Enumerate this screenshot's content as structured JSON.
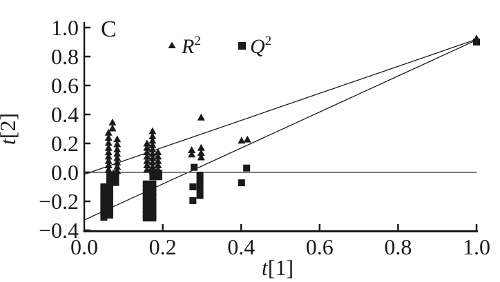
{
  "figure": {
    "panel_label": "C"
  },
  "legend": {
    "items": [
      {
        "marker": "triangle",
        "base": "R",
        "sup": "2"
      },
      {
        "marker": "square",
        "base": "Q",
        "sup": "2"
      }
    ]
  },
  "axes": {
    "x_t": "t",
    "x_bracket": "[1]",
    "y_t": "t",
    "y_bracket": "[2]"
  },
  "colors": {
    "ink": "#1a1a1a",
    "zero_line": "#7a7a7a"
  },
  "chart_data": {
    "type": "scatter",
    "title": "C",
    "xlabel": "t[1]",
    "ylabel": "t[2]",
    "xlim": [
      0.0,
      1.0
    ],
    "ylim": [
      -0.4,
      1.0
    ],
    "grid": false,
    "legend_position": "top-center-inside",
    "x_ticks": [
      0.0,
      0.2,
      0.4,
      0.6,
      0.8,
      1.0
    ],
    "x_tick_labels": [
      "0.0",
      "0.2",
      "0.4",
      "0.6",
      "0.8",
      "1.0"
    ],
    "y_ticks": [
      1.0,
      0.8,
      0.6,
      0.4,
      0.2,
      0.0,
      -0.2,
      -0.4
    ],
    "y_tick_labels": [
      "1.0",
      "0.8",
      "0.6",
      "0.4",
      "0.2",
      "0.0",
      "−0.2",
      "−0.4"
    ],
    "series": [
      {
        "name": "R2",
        "marker": "triangle",
        "points": [
          [
            0.062,
            0.02
          ],
          [
            0.062,
            0.05
          ],
          [
            0.062,
            0.08
          ],
          [
            0.062,
            0.11
          ],
          [
            0.062,
            0.14
          ],
          [
            0.062,
            0.17
          ],
          [
            0.062,
            0.205
          ],
          [
            0.062,
            0.24
          ],
          [
            0.084,
            0.01
          ],
          [
            0.084,
            0.04
          ],
          [
            0.084,
            0.07
          ],
          [
            0.084,
            0.1
          ],
          [
            0.084,
            0.13
          ],
          [
            0.084,
            0.16
          ],
          [
            0.084,
            0.195
          ],
          [
            0.084,
            0.23
          ],
          [
            0.062,
            0.275
          ],
          [
            0.072,
            0.305
          ],
          [
            0.072,
            0.345
          ],
          [
            0.16,
            0.02
          ],
          [
            0.16,
            0.05
          ],
          [
            0.16,
            0.08
          ],
          [
            0.16,
            0.11
          ],
          [
            0.16,
            0.14
          ],
          [
            0.16,
            0.17
          ],
          [
            0.16,
            0.2
          ],
          [
            0.174,
            0.01
          ],
          [
            0.174,
            0.04
          ],
          [
            0.174,
            0.07
          ],
          [
            0.174,
            0.1
          ],
          [
            0.174,
            0.13
          ],
          [
            0.174,
            0.16
          ],
          [
            0.174,
            0.19
          ],
          [
            0.174,
            0.22
          ],
          [
            0.174,
            0.25
          ],
          [
            0.174,
            0.285
          ],
          [
            0.188,
            0.02
          ],
          [
            0.188,
            0.05
          ],
          [
            0.188,
            0.08
          ],
          [
            0.188,
            0.11
          ],
          [
            0.188,
            0.14
          ],
          [
            0.274,
            0.125
          ],
          [
            0.274,
            0.155
          ],
          [
            0.298,
            0.105
          ],
          [
            0.298,
            0.135
          ],
          [
            0.298,
            0.17
          ],
          [
            0.298,
            0.38
          ],
          [
            0.401,
            0.22
          ],
          [
            0.416,
            0.228
          ],
          [
            1.0,
            0.925
          ]
        ]
      },
      {
        "name": "Q2",
        "marker": "square",
        "points": [
          [
            0.05,
            -0.1
          ],
          [
            0.05,
            -0.13
          ],
          [
            0.05,
            -0.16
          ],
          [
            0.05,
            -0.19
          ],
          [
            0.05,
            -0.22
          ],
          [
            0.05,
            -0.25
          ],
          [
            0.05,
            -0.28
          ],
          [
            0.05,
            -0.31
          ],
          [
            0.065,
            -0.02
          ],
          [
            0.065,
            -0.05
          ],
          [
            0.065,
            -0.08
          ],
          [
            0.065,
            -0.11
          ],
          [
            0.065,
            -0.14
          ],
          [
            0.065,
            -0.17
          ],
          [
            0.065,
            -0.2
          ],
          [
            0.065,
            -0.23
          ],
          [
            0.065,
            -0.26
          ],
          [
            0.065,
            -0.295
          ],
          [
            0.08,
            -0.01
          ],
          [
            0.08,
            -0.04
          ],
          [
            0.08,
            -0.07
          ],
          [
            0.158,
            -0.08
          ],
          [
            0.158,
            -0.11
          ],
          [
            0.158,
            -0.14
          ],
          [
            0.158,
            -0.17
          ],
          [
            0.158,
            -0.2
          ],
          [
            0.158,
            -0.23
          ],
          [
            0.158,
            -0.26
          ],
          [
            0.158,
            -0.29
          ],
          [
            0.158,
            -0.315
          ],
          [
            0.175,
            -0.005
          ],
          [
            0.175,
            -0.03
          ],
          [
            0.175,
            -0.08
          ],
          [
            0.175,
            -0.11
          ],
          [
            0.175,
            -0.14
          ],
          [
            0.175,
            -0.17
          ],
          [
            0.175,
            -0.2
          ],
          [
            0.175,
            -0.23
          ],
          [
            0.175,
            -0.26
          ],
          [
            0.175,
            -0.29
          ],
          [
            0.175,
            -0.315
          ],
          [
            0.19,
            -0.005
          ],
          [
            0.19,
            -0.03
          ],
          [
            0.28,
            0.035
          ],
          [
            0.295,
            -0.02
          ],
          [
            0.295,
            -0.055
          ],
          [
            0.295,
            -0.09
          ],
          [
            0.295,
            -0.125
          ],
          [
            0.295,
            -0.16
          ],
          [
            0.277,
            -0.1
          ],
          [
            0.277,
            -0.195
          ],
          [
            0.414,
            0.03
          ],
          [
            0.401,
            -0.072
          ],
          [
            1.0,
            0.9
          ]
        ]
      }
    ],
    "lines": [
      {
        "name": "r2-regression-line",
        "x1": 0.0,
        "y1": -0.014,
        "x2": 1.0,
        "y2": 0.919,
        "color": "#1a1a1a",
        "width": 1.3
      },
      {
        "name": "q2-regression-line",
        "x1": 0.0,
        "y1": -0.329,
        "x2": 1.0,
        "y2": 0.914,
        "color": "#1a1a1a",
        "width": 1.3
      },
      {
        "name": "zero-line",
        "x1": 0.0,
        "y1": 0.0,
        "x2": 1.0,
        "y2": 0.0,
        "color": "#7a7a7a",
        "width": 2
      }
    ]
  }
}
